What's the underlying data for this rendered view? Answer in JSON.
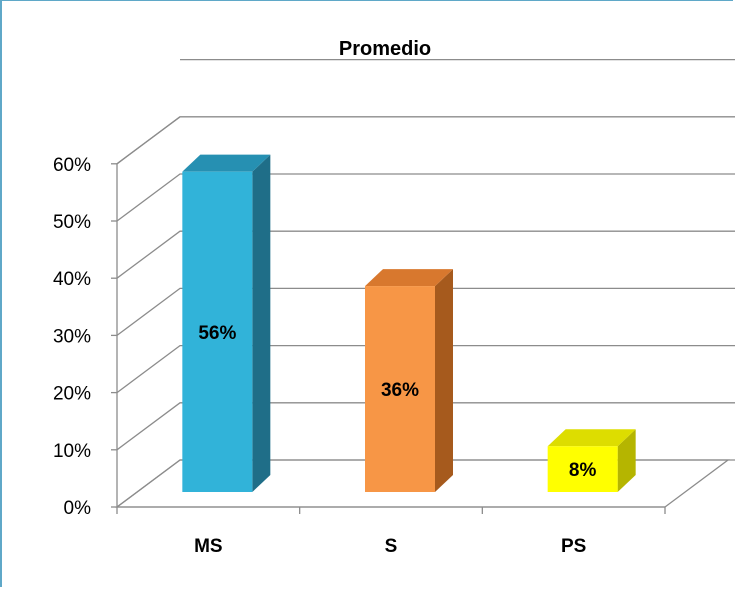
{
  "chart_data": {
    "type": "bar",
    "title": "Promedio",
    "categories": [
      "MS",
      "S",
      "PS"
    ],
    "values": [
      56,
      36,
      8
    ],
    "data_labels": [
      "56%",
      "36%",
      "8%"
    ],
    "ylim": [
      0,
      60
    ],
    "y_ticks": [
      "0%",
      "10%",
      "20%",
      "30%",
      "40%",
      "50%",
      "60%"
    ],
    "style": "3d-column",
    "grid": true,
    "legend": "none",
    "colors": [
      "#31b3d9",
      "#f79646",
      "#ffff00"
    ],
    "side_colors": [
      "#1f6e88",
      "#a65a1d",
      "#b5b500"
    ],
    "top_colors": [
      "#2690b2",
      "#d8782e",
      "#dddd00"
    ]
  }
}
